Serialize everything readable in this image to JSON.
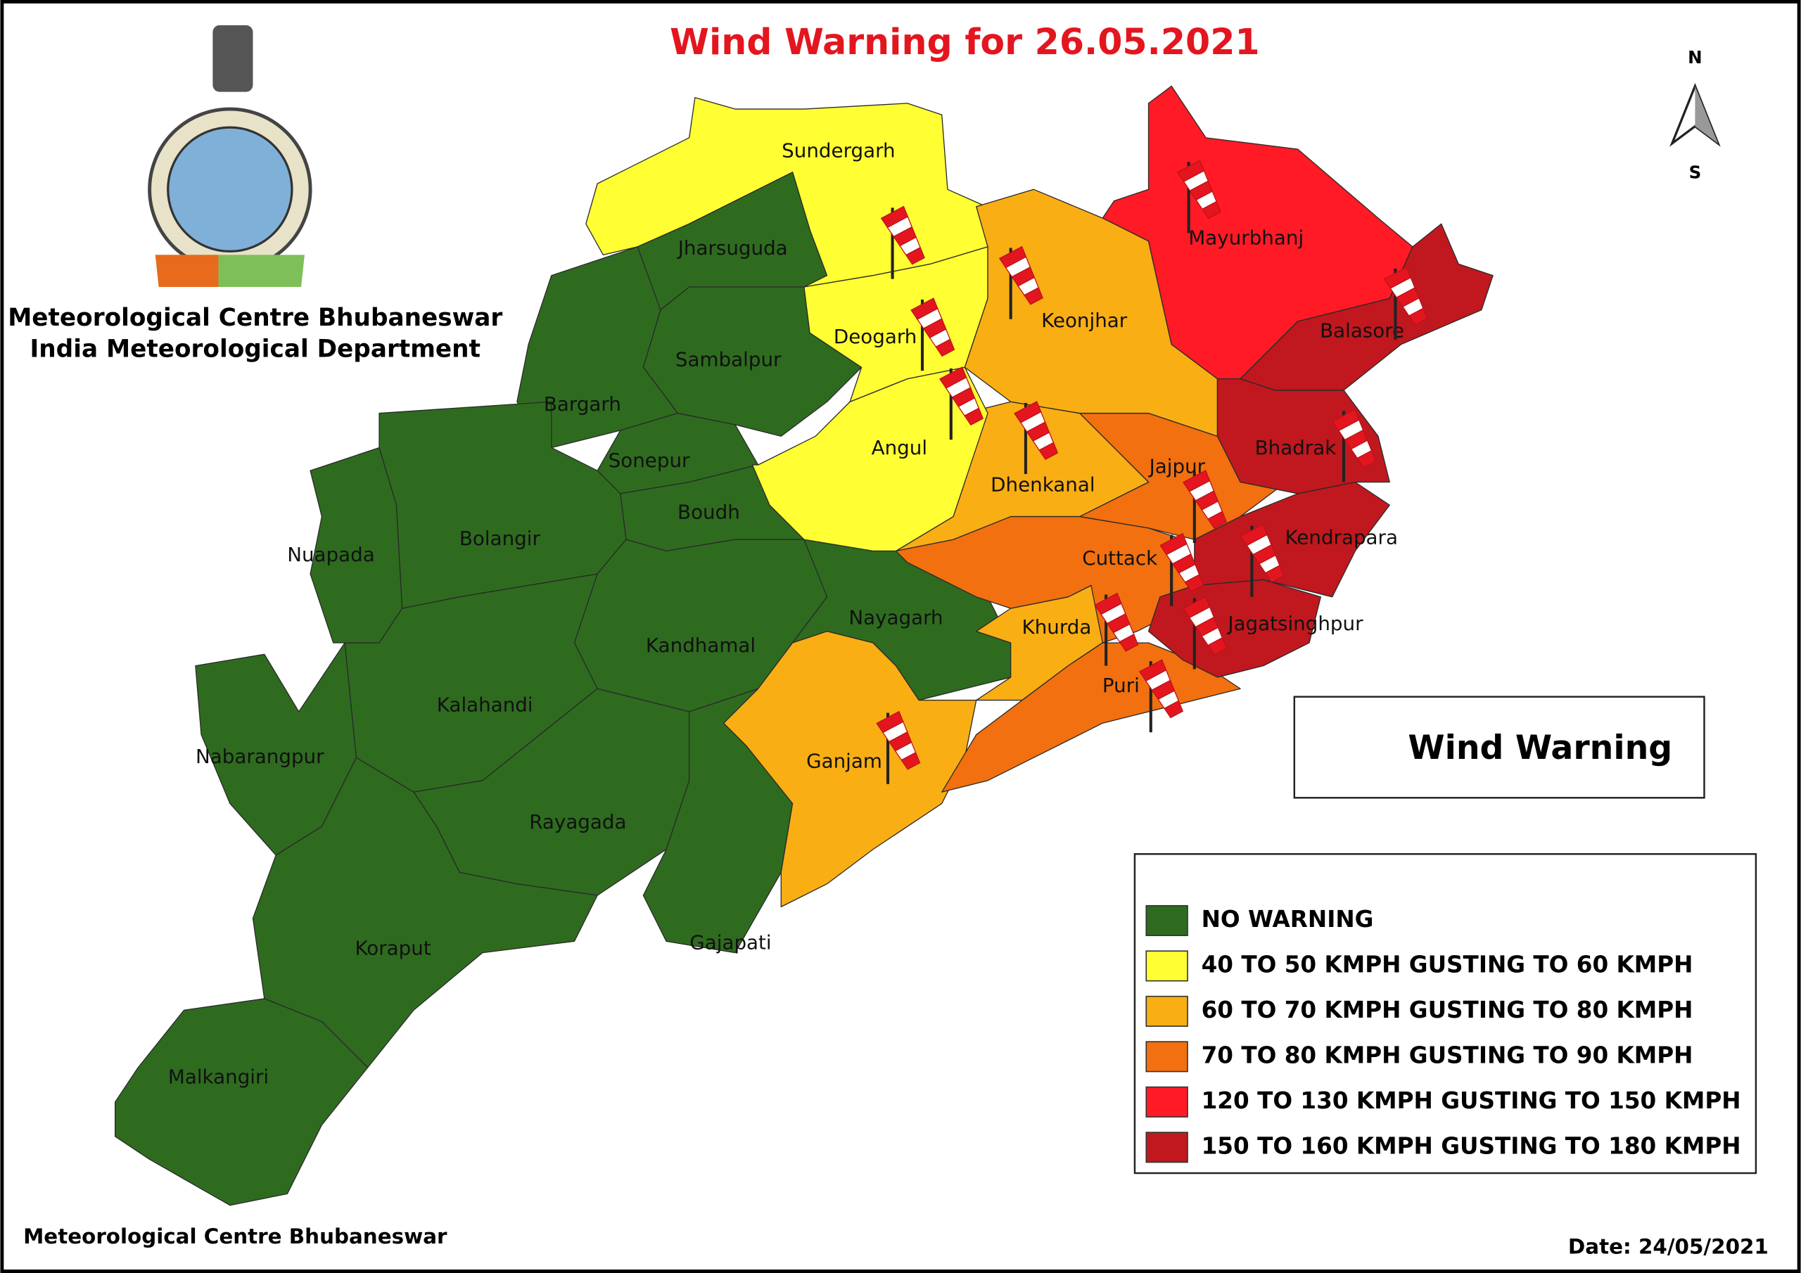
{
  "header": {
    "title": "Wind Warning for 26.05.2021",
    "organization": [
      "Meteorological Centre Bhubaneswar",
      "India Meteorological Department"
    ]
  },
  "compass": {
    "north": "N",
    "south": "S"
  },
  "districts": [
    {
      "name": "Sundergarh",
      "color": "#ffff33"
    },
    {
      "name": "Jharsuguda",
      "color": "#2e6b1f"
    },
    {
      "name": "Sambalpur",
      "color": "#2e6b1f"
    },
    {
      "name": "Bargarh",
      "color": "#2e6b1f"
    },
    {
      "name": "Sonepur",
      "color": "#2e6b1f"
    },
    {
      "name": "Boudh",
      "color": "#2e6b1f"
    },
    {
      "name": "Nuapada",
      "color": "#2e6b1f"
    },
    {
      "name": "Bolangir",
      "color": "#2e6b1f"
    },
    {
      "name": "Kandhamal",
      "color": "#2e6b1f"
    },
    {
      "name": "Kalahandi",
      "color": "#2e6b1f"
    },
    {
      "name": "Nabarangpur",
      "color": "#2e6b1f"
    },
    {
      "name": "Rayagada",
      "color": "#2e6b1f"
    },
    {
      "name": "Gajapati",
      "color": "#2e6b1f"
    },
    {
      "name": "Koraput",
      "color": "#2e6b1f"
    },
    {
      "name": "Malkangiri",
      "color": "#2e6b1f"
    },
    {
      "name": "Nayagarh",
      "color": "#2e6b1f"
    },
    {
      "name": "Ganjam",
      "color": "#f9ae14"
    },
    {
      "name": "Khurda",
      "color": "#f9ae14"
    },
    {
      "name": "Puri",
      "color": "#f2700f"
    },
    {
      "name": "Cuttack",
      "color": "#f2700f"
    },
    {
      "name": "Jagatsinghpur",
      "color": "#c0181e"
    },
    {
      "name": "Kendrapara",
      "color": "#c0181e"
    },
    {
      "name": "Jajpur",
      "color": "#f2700f"
    },
    {
      "name": "Dhenkanal",
      "color": "#f9ae14"
    },
    {
      "name": "Angul",
      "color": "#ffff33"
    },
    {
      "name": "Deogarh",
      "color": "#ffff33"
    },
    {
      "name": "Keonjhar",
      "color": "#f9ae14"
    },
    {
      "name": "Mayurbhanj",
      "color": "#ff1a25"
    },
    {
      "name": "Balasore",
      "color": "#c0181e"
    },
    {
      "name": "Bhadrak",
      "color": "#c0181e"
    }
  ],
  "windsock_legend": {
    "label": "Wind Warning"
  },
  "legend": [
    {
      "label": "NO WARNING",
      "color": "#2e6b1f"
    },
    {
      "label": "40 TO 50 KMPH GUSTING TO 60 KMPH",
      "color": "#ffff33"
    },
    {
      "label": "60 TO 70 KMPH GUSTING TO 80 KMPH",
      "color": "#f9ae14"
    },
    {
      "label": "70 TO 80 KMPH GUSTING TO 90 KMPH",
      "color": "#f2700f"
    },
    {
      "label": "120 TO 130 KMPH GUSTING TO 150 KMPH",
      "color": "#ff1a25"
    },
    {
      "label": "150 TO 160 KMPH GUSTING TO 180 KMPH",
      "color": "#c0181e"
    }
  ],
  "footer": {
    "source": "Meteorological Centre Bhubaneswar",
    "date": "Date: 24/05/2021"
  }
}
